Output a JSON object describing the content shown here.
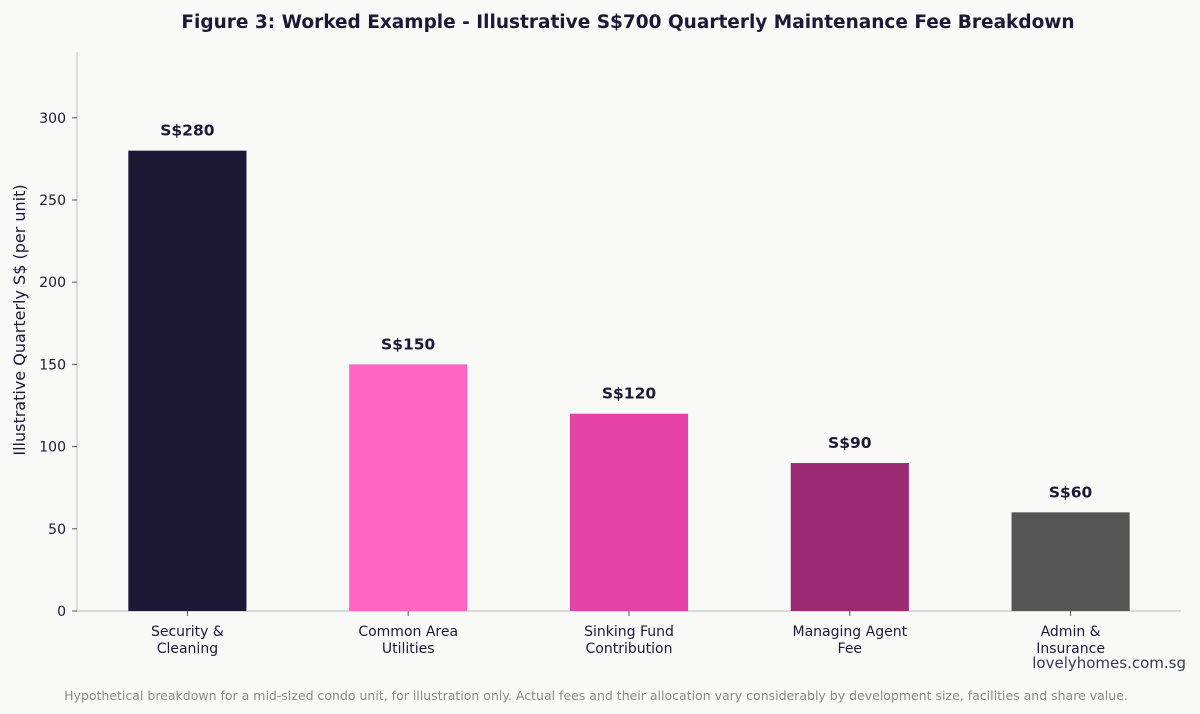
{
  "chart_data": {
    "type": "bar",
    "title": "Figure 3: Worked Example - Illustrative S$700 Quarterly Maintenance Fee Breakdown",
    "ylabel": "Illustrative Quarterly S$ (per unit)",
    "xlabel": "",
    "categories": [
      [
        "Security &",
        "Cleaning"
      ],
      [
        "Common Area",
        "Utilities"
      ],
      [
        "Sinking Fund",
        "Contribution"
      ],
      [
        "Managing Agent",
        "Fee"
      ],
      [
        "Admin &",
        "Insurance"
      ]
    ],
    "values": [
      280,
      150,
      120,
      90,
      60
    ],
    "data_labels": [
      "S$280",
      "S$150",
      "S$120",
      "S$90",
      "S$60"
    ],
    "colors": [
      "#1c1836",
      "#ff66c4",
      "#e541a6",
      "#9b2a72",
      "#555555"
    ],
    "ylim": [
      0,
      340
    ],
    "yticks": [
      0,
      50,
      100,
      150,
      200,
      250,
      300
    ],
    "grid": false,
    "legend": "none"
  },
  "watermark": "lovelyhomes.com.sg",
  "footnote": "Hypothetical breakdown for a mid-sized condo unit, for illustration only. Actual fees and their allocation vary considerably by development size, facilities and share value."
}
